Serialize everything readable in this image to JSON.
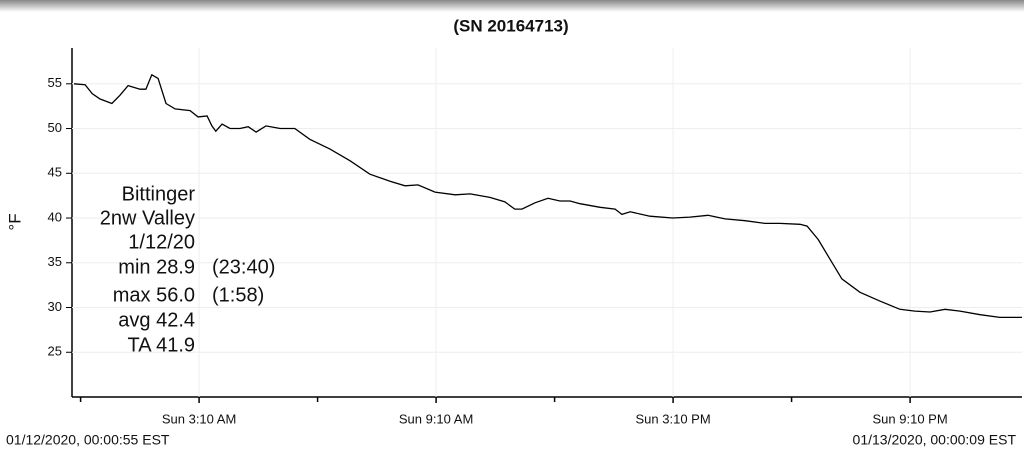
{
  "chart_data": {
    "type": "line",
    "title": "(SN 20164713)",
    "y_label": "°F",
    "start_label": "01/12/2020, 00:00:55 EST",
    "end_label": "01/13/2020, 00:00:09 EST",
    "annotation_lines": [
      "Bittinger",
      "2nw Valley",
      "1/12/20",
      "min 28.9",
      "max 56.0",
      "avg 42.4",
      "TA 41.9"
    ],
    "annotation_times": [
      "(23:40)",
      "(1:58)"
    ],
    "color": "#000000",
    "grid": true,
    "xlim": [
      0,
      24
    ],
    "ylim": [
      20,
      59
    ],
    "yticks": [
      25,
      30,
      35,
      40,
      45,
      50,
      55
    ],
    "xticks": [
      {
        "value": 3.1667,
        "label": "Sun 3:10 AM"
      },
      {
        "value": 9.1667,
        "label": "Sun 9:10 AM"
      },
      {
        "value": 15.1667,
        "label": "Sun 3:10 PM"
      },
      {
        "value": 21.1667,
        "label": "Sun 9:10 PM"
      }
    ],
    "xminorticks": [
      0.1667,
      6.1667,
      12.1667,
      18.1667
    ],
    "x": [
      0,
      0.28,
      0.46,
      0.66,
      0.96,
      1.16,
      1.37,
      1.67,
      1.82,
      1.97,
      2.13,
      2.33,
      2.56,
      2.94,
      3.14,
      3.37,
      3.49,
      3.59,
      3.75,
      3.95,
      4.2,
      4.41,
      4.61,
      4.86,
      5.22,
      5.59,
      5.97,
      6.48,
      6.99,
      7.49,
      8.0,
      8.38,
      8.71,
      9.14,
      9.65,
      10.03,
      10.53,
      10.91,
      11.16,
      11.34,
      11.67,
      12.0,
      12.3,
      12.56,
      12.81,
      13.32,
      13.7,
      13.87,
      14.08,
      14.58,
      15.16,
      15.59,
      16.05,
      16.48,
      16.99,
      17.49,
      17.87,
      18.38,
      18.56,
      18.84,
      19.14,
      19.44,
      19.9,
      20.41,
      20.91,
      21.29,
      21.67,
      22.05,
      22.43,
      22.94,
      23.44,
      23.67,
      24.0
    ],
    "values": [
      55.0,
      54.9,
      53.9,
      53.3,
      52.8,
      53.7,
      54.8,
      54.4,
      54.4,
      56.0,
      55.6,
      52.8,
      52.2,
      52.0,
      51.3,
      51.4,
      50.3,
      49.7,
      50.5,
      50.0,
      50.0,
      50.2,
      49.6,
      50.3,
      50.0,
      50.0,
      48.8,
      47.7,
      46.4,
      44.9,
      44.1,
      43.6,
      43.7,
      42.9,
      42.6,
      42.7,
      42.3,
      41.8,
      41.0,
      41.0,
      41.7,
      42.2,
      41.9,
      41.9,
      41.6,
      41.2,
      41.0,
      40.4,
      40.7,
      40.2,
      40.0,
      40.1,
      40.3,
      39.9,
      39.7,
      39.4,
      39.4,
      39.3,
      39.1,
      37.6,
      35.4,
      33.2,
      31.7,
      30.7,
      29.8,
      29.6,
      29.5,
      29.8,
      29.6,
      29.2,
      28.9,
      28.9,
      28.9
    ]
  }
}
